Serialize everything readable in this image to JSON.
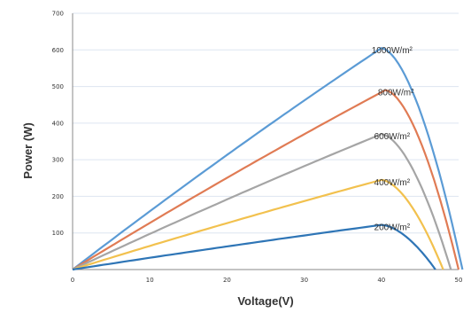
{
  "chart_data": {
    "type": "line",
    "title": "",
    "xlabel": "Voltage(V)",
    "ylabel": "Power (W)",
    "xlim": [
      0,
      50
    ],
    "ylim": [
      0,
      700
    ],
    "x_ticks": [
      "0",
      "10",
      "20",
      "30",
      "40",
      "50"
    ],
    "y_ticks": [
      "100",
      "200",
      "300",
      "400",
      "500",
      "600",
      "700"
    ],
    "grid": true,
    "series": [
      {
        "name": "1000W/m²",
        "color": "#5b9bd5",
        "peak_voltage": 40,
        "peak_power": 605,
        "zero_voltage": 50.5
      },
      {
        "name": "800W/m²",
        "color": "#e07b54",
        "peak_voltage": 40.5,
        "peak_power": 490,
        "zero_voltage": 50
      },
      {
        "name": "600W/m²",
        "color": "#a5a5a5",
        "peak_voltage": 40,
        "peak_power": 370,
        "zero_voltage": 49
      },
      {
        "name": "400W/m²",
        "color": "#f2c14e",
        "peak_voltage": 40,
        "peak_power": 245,
        "zero_voltage": 48
      },
      {
        "name": "200W/m²",
        "color": "#2e75b6",
        "peak_voltage": 40,
        "peak_power": 122,
        "zero_voltage": 47
      }
    ]
  }
}
